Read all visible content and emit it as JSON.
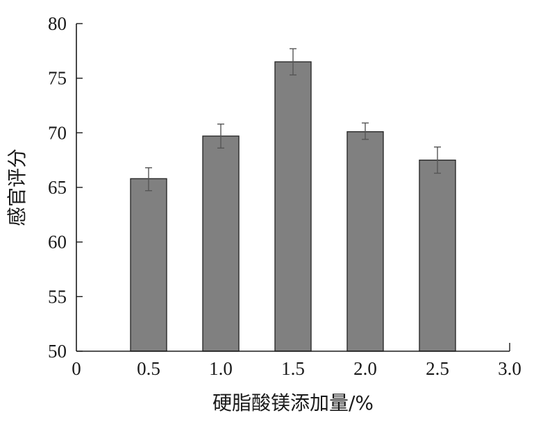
{
  "chart_data": {
    "type": "bar",
    "x_tick_labels": [
      "0",
      "0.5",
      "1.0",
      "1.5",
      "2.0",
      "2.5",
      "3.0"
    ],
    "x_ticks": [
      0,
      0.5,
      1.0,
      1.5,
      2.0,
      2.5,
      3.0
    ],
    "y_tick_labels": [
      "50",
      "55",
      "60",
      "65",
      "70",
      "75",
      "80"
    ],
    "y_ticks": [
      50,
      55,
      60,
      65,
      70,
      75,
      80
    ],
    "xlabel": "硬脂酸镁添加量/%",
    "ylabel": "感官评分",
    "xlim": [
      0,
      3.0
    ],
    "ylim": [
      50,
      80
    ],
    "bar_width": 0.25,
    "bars": [
      {
        "x": 0.5,
        "value": 65.8,
        "err_low": 64.7,
        "err_high": 66.8
      },
      {
        "x": 1.0,
        "value": 69.7,
        "err_low": 68.6,
        "err_high": 70.8
      },
      {
        "x": 1.5,
        "value": 76.5,
        "err_low": 75.3,
        "err_high": 77.7
      },
      {
        "x": 2.0,
        "value": 70.1,
        "err_low": 69.4,
        "err_high": 70.9
      },
      {
        "x": 2.5,
        "value": 67.5,
        "err_low": 66.3,
        "err_high": 68.7
      }
    ],
    "grid": false,
    "legend": false
  }
}
